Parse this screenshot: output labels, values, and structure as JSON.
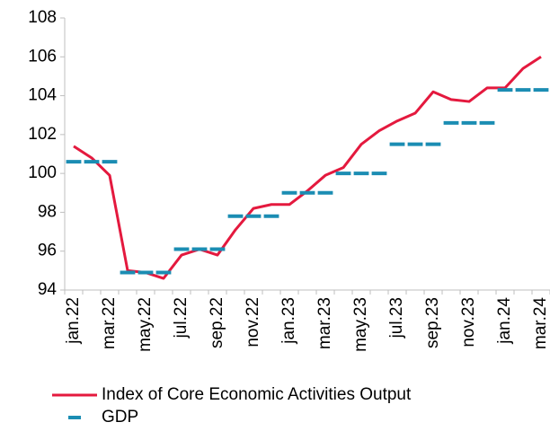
{
  "chart_data": {
    "type": "line",
    "categories": [
      "jan.22",
      null,
      "mar.22",
      null,
      "may.22",
      null,
      "jul.22",
      null,
      "sep.22",
      null,
      "nov.22",
      null,
      "jan.23",
      null,
      "mar.23",
      null,
      "may.23",
      null,
      "jul.23",
      null,
      "sep.23",
      null,
      "nov.23",
      null,
      "jan.24",
      null,
      "mar.24"
    ],
    "series": [
      {
        "name": "Index of Core Economic Activities Output",
        "color": "#e4193e",
        "style": "line",
        "values": [
          101.4,
          100.8,
          99.9,
          95.0,
          94.9,
          94.6,
          95.8,
          96.1,
          95.8,
          97.1,
          98.2,
          98.4,
          98.4,
          99.1,
          99.9,
          100.3,
          101.5,
          102.2,
          102.7,
          103.1,
          104.2,
          103.8,
          103.7,
          104.4,
          104.4,
          105.4,
          106.0
        ]
      },
      {
        "name": "GDP",
        "color": "#1b8db3",
        "style": "dash",
        "values": [
          100.6,
          100.6,
          100.6,
          94.9,
          94.9,
          94.9,
          96.1,
          96.1,
          96.1,
          97.8,
          97.8,
          97.8,
          99.0,
          99.0,
          99.0,
          100.0,
          100.0,
          100.0,
          101.5,
          101.5,
          101.5,
          102.6,
          102.6,
          102.6,
          104.3,
          104.3,
          104.3
        ]
      }
    ],
    "ylim": [
      94,
      108
    ],
    "yticks": [
      94,
      96,
      98,
      100,
      102,
      104,
      106,
      108
    ],
    "grid": false,
    "legend": "bottom"
  }
}
